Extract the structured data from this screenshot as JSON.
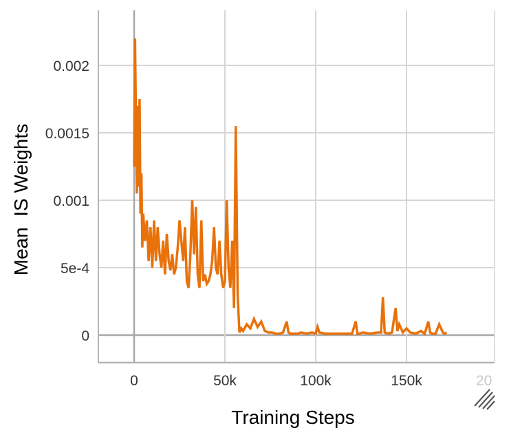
{
  "chart_data": {
    "type": "line",
    "title": "",
    "xlabel": "Training Steps",
    "ylabel": "Mean  IS Weights",
    "x_ticks": [
      "0",
      "50k",
      "100k",
      "150k",
      "20"
    ],
    "y_ticks": [
      "0",
      "5e-4",
      "0.001",
      "0.0015",
      "0.002"
    ],
    "xlim": [
      -20000,
      198000
    ],
    "ylim": [
      -0.0002,
      0.0024
    ],
    "grid": true,
    "legend": "none",
    "series": [
      {
        "name": "Mean IS Weights",
        "color": "#e8710a",
        "x": [
          0,
          500,
          1000,
          1500,
          2000,
          2500,
          3000,
          3500,
          4000,
          4500,
          5000,
          6000,
          7000,
          8000,
          9000,
          10000,
          11000,
          12000,
          13000,
          14000,
          15000,
          16000,
          17000,
          18000,
          19000,
          20000,
          21000,
          22000,
          23000,
          24000,
          25000,
          26000,
          27000,
          28000,
          29000,
          30000,
          31000,
          32000,
          33000,
          34000,
          35000,
          36000,
          37000,
          38000,
          39000,
          40000,
          41000,
          42000,
          43000,
          44000,
          45000,
          46000,
          47000,
          48000,
          49000,
          50000,
          51000,
          52000,
          53000,
          54000,
          55000,
          56000,
          57000,
          58000,
          59000,
          60000,
          62000,
          64000,
          66000,
          68000,
          70000,
          72000,
          74000,
          76000,
          78000,
          80000,
          82000,
          84000,
          85000,
          86000,
          88000,
          90000,
          92000,
          95000,
          98000,
          100000,
          101000,
          102000,
          105000,
          110000,
          115000,
          120000,
          122000,
          123000,
          124000,
          126000,
          130000,
          134000,
          136000,
          137000,
          138000,
          140000,
          142000,
          144000,
          145000,
          146000,
          148000,
          150000,
          152000,
          155000,
          158000,
          160000,
          162000,
          163000,
          164000,
          166000,
          168000,
          170000,
          171000,
          172000
        ],
        "values": [
          0.00125,
          0.0022,
          0.0016,
          0.00105,
          0.0017,
          0.0011,
          0.00175,
          0.0009,
          0.0012,
          0.00065,
          0.0009,
          0.0007,
          0.00085,
          0.00055,
          0.0008,
          0.0005,
          0.00085,
          0.00055,
          0.0008,
          0.0006,
          0.0005,
          0.0007,
          0.00045,
          0.00075,
          0.00055,
          0.00048,
          0.0006,
          0.00045,
          0.0005,
          0.00065,
          0.00085,
          0.0007,
          0.00055,
          0.0008,
          0.0004,
          0.00035,
          0.0006,
          0.001,
          0.0006,
          0.00095,
          0.00045,
          0.00035,
          0.00085,
          0.0004,
          0.00045,
          0.00038,
          0.0004,
          0.00045,
          0.00055,
          0.0008,
          0.0005,
          0.00045,
          0.0007,
          0.00045,
          0.00035,
          0.0004,
          0.001,
          0.0005,
          0.00035,
          0.0007,
          0.0002,
          0.00155,
          0.0003,
          2e-05,
          5e-05,
          3e-05,
          8e-05,
          5e-05,
          0.00012,
          6e-05,
          0.0001,
          3e-05,
          2e-05,
          2e-05,
          1e-05,
          1e-05,
          2e-05,
          0.0001,
          2e-05,
          1e-05,
          1e-05,
          1e-05,
          2e-05,
          1e-05,
          2e-05,
          1e-05,
          6e-05,
          2e-05,
          1e-05,
          1e-05,
          1e-05,
          1e-05,
          0.0001,
          1e-05,
          1e-05,
          2e-05,
          1e-05,
          2e-05,
          2e-05,
          0.00028,
          2e-05,
          1e-05,
          2e-05,
          0.0002,
          3e-05,
          8e-05,
          2e-05,
          5e-05,
          2e-05,
          1e-05,
          3e-05,
          1e-05,
          0.0001,
          2e-05,
          1e-05,
          1e-05,
          8e-05,
          2e-05,
          1e-05,
          2e-05
        ]
      }
    ]
  },
  "resize_handle": {
    "icon": "resize-handle-icon"
  }
}
